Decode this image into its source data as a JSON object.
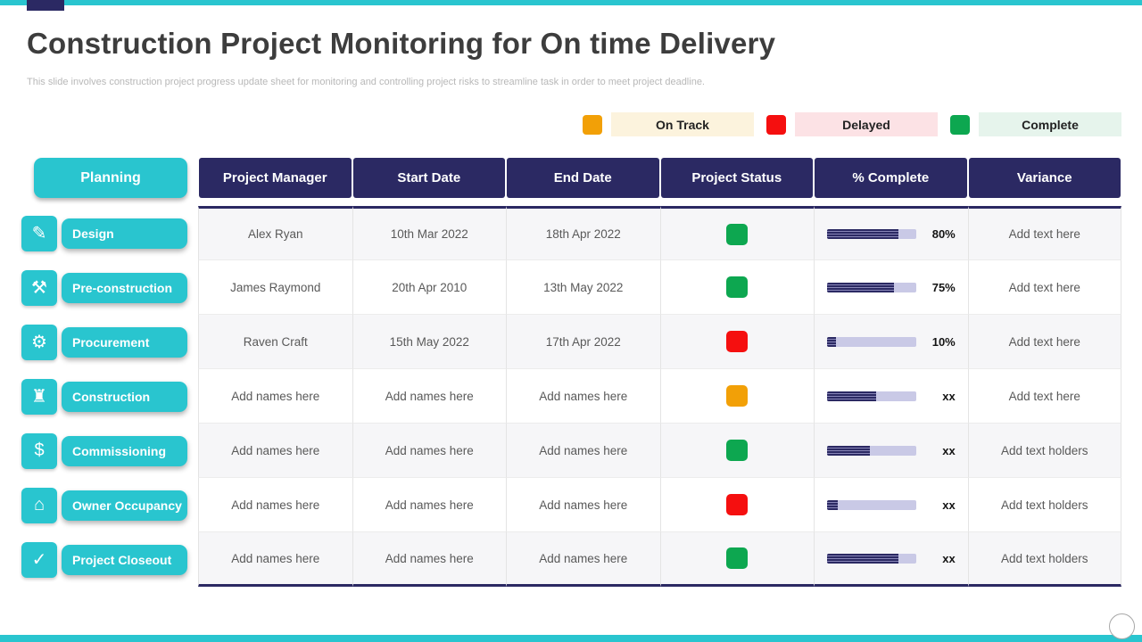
{
  "slide": {
    "title": "Construction Project Monitoring for On time Delivery",
    "subtitle": "This slide involves construction project progress update sheet for monitoring and controlling project risks to streamline task in order to meet project deadline."
  },
  "legend": {
    "items": [
      {
        "label": "On Track",
        "color": "#F2A007",
        "bg": "#FCF3DD"
      },
      {
        "label": "Delayed",
        "color": "#F50F0F",
        "bg": "#FCE2E5"
      },
      {
        "label": "Complete",
        "color": "#0DA750",
        "bg": "#E6F4EC"
      }
    ]
  },
  "table": {
    "phase_header": "Planning",
    "columns": [
      "Project Manager",
      "Start Date",
      "End Date",
      "Project Status",
      "% Complete",
      "Variance"
    ],
    "rows": [
      {
        "phase": "Design",
        "glyph": "✎",
        "manager": "Alex  Ryan",
        "start": "10th Mar 2022",
        "end": "18th Apr 2022",
        "status": "complete",
        "status_color": "#0DA750",
        "progress": 80,
        "progress_label": "80%",
        "variance": "Add text here"
      },
      {
        "phase": "Pre-construction",
        "glyph": "⚒",
        "manager": "James Raymond",
        "start": "20th Apr 2010",
        "end": "13th May  2022",
        "status": "complete",
        "status_color": "#0DA750",
        "progress": 75,
        "progress_label": "75%",
        "variance": "Add text here"
      },
      {
        "phase": "Procurement",
        "glyph": "⚙",
        "manager": "Raven Craft",
        "start": "15th May  2022",
        "end": "17th Apr 2022",
        "status": "delayed",
        "status_color": "#F50F0F",
        "progress": 10,
        "progress_label": "10%",
        "variance": "Add text here"
      },
      {
        "phase": "Construction",
        "glyph": "♜",
        "manager": "Add names here",
        "start": "Add names here",
        "end": "Add names here",
        "status": "on-track",
        "status_color": "#F2A007",
        "progress": 55,
        "progress_label": "xx",
        "variance": "Add text here"
      },
      {
        "phase": "Commissioning",
        "glyph": "$",
        "manager": "Add names here",
        "start": "Add names here",
        "end": "Add names here",
        "status": "complete",
        "status_color": "#0DA750",
        "progress": 48,
        "progress_label": "xx",
        "variance": "Add text holders"
      },
      {
        "phase": "Owner Occupancy",
        "glyph": "⌂",
        "manager": "Add names here",
        "start": "Add names here",
        "end": "Add names here",
        "status": "delayed",
        "status_color": "#F50F0F",
        "progress": 12,
        "progress_label": "xx",
        "variance": "Add text holders"
      },
      {
        "phase": "Project Closeout",
        "glyph": "✓",
        "manager": "Add names here",
        "start": "Add names here",
        "end": "Add names here",
        "status": "complete",
        "status_color": "#0DA750",
        "progress": 80,
        "progress_label": "xx",
        "variance": "Add text holders"
      }
    ]
  },
  "colors": {
    "accent_teal": "#29C5CF",
    "navy": "#2B2963",
    "progress_track": "#C9C9E6"
  }
}
